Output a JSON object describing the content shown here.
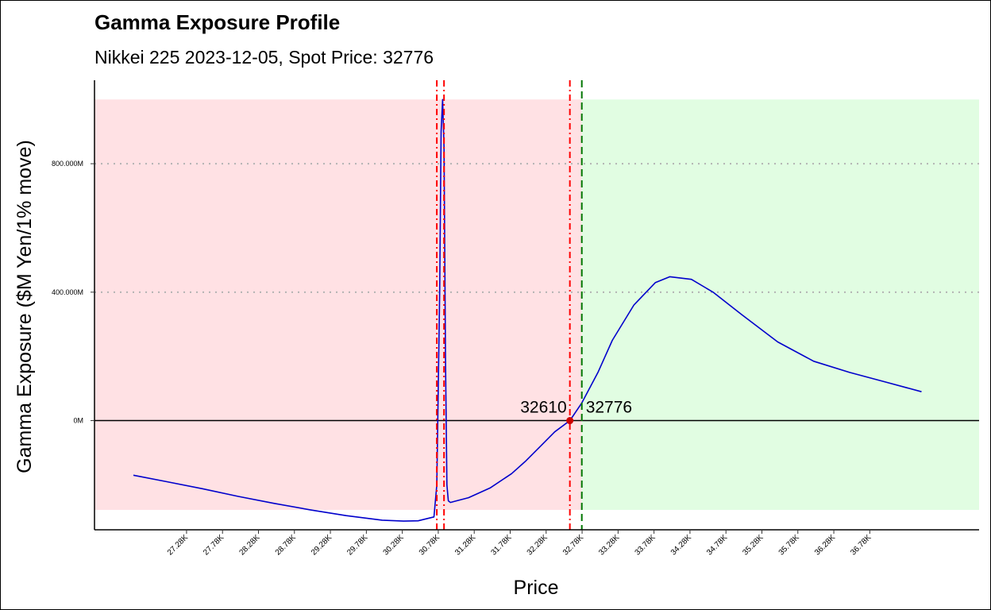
{
  "chart_data": {
    "type": "line",
    "title": "Gamma Exposure Profile",
    "subtitle": "Nikkei 225 2023-12-05, Spot Price: 32776",
    "xlabel": "Price",
    "ylabel": "Gamma Exposure ($M Yen/1% move)",
    "xlim": [
      26000,
      38300
    ],
    "ylim": [
      -340,
      1060
    ],
    "x_ticks": [
      27280,
      27780,
      28280,
      28780,
      29280,
      29780,
      30280,
      30780,
      31280,
      31780,
      32280,
      32780,
      33280,
      33780,
      34280,
      34780,
      35280,
      35780,
      36280,
      36780
    ],
    "x_tick_labels": [
      "27.28K",
      "27.78K",
      "28.28K",
      "28.78K",
      "29.28K",
      "29.78K",
      "30.28K",
      "30.78K",
      "31.28K",
      "31.78K",
      "32.28K",
      "32.78K",
      "33.28K",
      "33.78K",
      "34.28K",
      "34.78K",
      "35.28K",
      "35.78K",
      "36.28K",
      "36.78K"
    ],
    "y_ticks": [
      0,
      400,
      800
    ],
    "y_tick_labels": [
      "0M",
      "400.000M",
      "800.000M"
    ],
    "grid": "horizontal dotted at 400M and 800M",
    "series": [
      {
        "color": "#0000cc",
        "x": [
          26541,
          27000,
          27500,
          28000,
          28500,
          29000,
          29500,
          30000,
          30300,
          30500,
          30720,
          30760,
          30800,
          30820,
          30840,
          30860,
          30880,
          30900,
          30920,
          30950,
          31000,
          31200,
          31500,
          31800,
          32000,
          32200,
          32400,
          32610,
          32776,
          33000,
          33200,
          33500,
          33800,
          34000,
          34300,
          34600,
          35000,
          35500,
          36000,
          36500,
          37000,
          37500
        ],
        "y": [
          -170,
          -190,
          -212,
          -236,
          -258,
          -278,
          -296,
          -310,
          -313,
          -312,
          -300,
          -200,
          400,
          900,
          1000,
          850,
          200,
          -200,
          -250,
          -255,
          -252,
          -240,
          -210,
          -165,
          -125,
          -80,
          -35,
          0,
          55,
          150,
          250,
          360,
          430,
          448,
          440,
          400,
          330,
          245,
          185,
          150,
          120,
          90
        ]
      }
    ],
    "regions": [
      {
        "x_from": 26000,
        "x_to": 32776,
        "color": "#ffe1e4",
        "y_from": -278,
        "y_to": 1000
      },
      {
        "x_from": 32776,
        "x_to": 38300,
        "color": "#e1fde2",
        "y_from": -278,
        "y_to": 1000
      }
    ],
    "vlines": [
      {
        "x": 30760,
        "color": "#ff0000",
        "style": "dot-dash"
      },
      {
        "x": 30860,
        "color": "#ff0000",
        "style": "dot-dash"
      },
      {
        "x": 32610,
        "color": "#ff0000",
        "style": "dot-dash"
      },
      {
        "x": 32776,
        "color": "#007700",
        "style": "dash"
      }
    ],
    "hline": {
      "y": 0,
      "color": "#000000"
    },
    "marker": {
      "x": 32610,
      "y": 0,
      "color": "#cc0000"
    },
    "annotations": [
      {
        "text": "32610",
        "x": 32610,
        "y": 0,
        "anchor": "end"
      },
      {
        "text": "32776",
        "x": 32776,
        "y": 0,
        "anchor": "start"
      }
    ]
  }
}
